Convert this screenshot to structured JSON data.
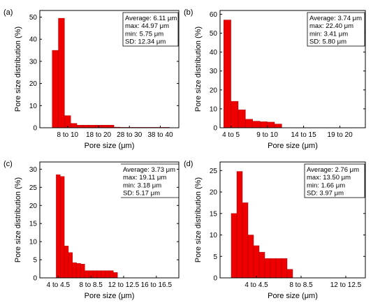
{
  "chart_data": [
    {
      "panel_label": "(a)",
      "type": "bar",
      "xlabel": "Pore size (μm)",
      "ylabel": "Pore size distribution (%)",
      "ylim": [
        0,
        53
      ],
      "yticks": [
        0,
        10,
        20,
        30,
        40,
        50
      ],
      "xlim": [
        0,
        45
      ],
      "xtick_labels": [
        {
          "text": "8 to 10",
          "x": 9
        },
        {
          "text": "18 to 20",
          "x": 19
        },
        {
          "text": "28 to 30",
          "x": 29
        },
        {
          "text": "38 to 40",
          "x": 39
        }
      ],
      "bars": [
        {
          "x0": 4,
          "x1": 6,
          "value": 35
        },
        {
          "x0": 6,
          "x1": 8,
          "value": 49.5
        },
        {
          "x0": 8,
          "x1": 10,
          "value": 5.5
        },
        {
          "x0": 10,
          "x1": 12,
          "value": 2
        },
        {
          "x0": 12,
          "x1": 14,
          "value": 1.2
        },
        {
          "x0": 14,
          "x1": 16,
          "value": 1.2
        },
        {
          "x0": 16,
          "x1": 18,
          "value": 1.2
        },
        {
          "x0": 18,
          "x1": 20,
          "value": 1.2
        },
        {
          "x0": 20,
          "x1": 22,
          "value": 1.2
        },
        {
          "x0": 22,
          "x1": 24,
          "value": 1.2
        },
        {
          "x0": 24,
          "x1": 26,
          "value": 0.3
        },
        {
          "x0": 26,
          "x1": 28,
          "value": 0.2
        },
        {
          "x0": 28,
          "x1": 30,
          "value": 0.2
        },
        {
          "x0": 30,
          "x1": 32,
          "value": 0.2
        },
        {
          "x0": 32,
          "x1": 34,
          "value": 0.2
        },
        {
          "x0": 34,
          "x1": 36,
          "value": 0.2
        },
        {
          "x0": 36,
          "x1": 38,
          "value": 0.2
        },
        {
          "x0": 38,
          "x1": 40,
          "value": 0.2
        },
        {
          "x0": 40,
          "x1": 42,
          "value": 0.2
        }
      ],
      "stats": [
        "Average: 6.11 μm",
        "max: 44.97 μm",
        "min: 5.75 μm",
        "SD: 12.34 μm"
      ],
      "stats_style": "box"
    },
    {
      "panel_label": "(b)",
      "type": "bar",
      "xlabel": "Pore size (μm)",
      "ylabel": "Pore size distribution (%)",
      "ylim": [
        0,
        62
      ],
      "yticks": [
        0,
        10,
        20,
        30,
        40,
        50,
        60
      ],
      "xlim": [
        3,
        23
      ],
      "xtick_labels": [
        {
          "text": "4 to 5",
          "x": 4.5
        },
        {
          "text": "9 to 10",
          "x": 9.5
        },
        {
          "text": "14 to 15",
          "x": 14.5
        },
        {
          "text": "19 to 20",
          "x": 19.5
        }
      ],
      "bars": [
        {
          "x0": 3.5,
          "x1": 4.5,
          "value": 57
        },
        {
          "x0": 4.5,
          "x1": 5.5,
          "value": 14
        },
        {
          "x0": 5.5,
          "x1": 6.5,
          "value": 9.5
        },
        {
          "x0": 6.5,
          "x1": 7.5,
          "value": 4.5
        },
        {
          "x0": 7.5,
          "x1": 8.5,
          "value": 3.5
        },
        {
          "x0": 8.5,
          "x1": 9.5,
          "value": 3.2
        },
        {
          "x0": 9.5,
          "x1": 10.5,
          "value": 3
        },
        {
          "x0": 10.5,
          "x1": 11.5,
          "value": 2
        }
      ],
      "stats": [
        "Average: 3.74 μm",
        "max: 22.40 μm",
        "min: 3.41 μm",
        "SD: 5.80 μm"
      ],
      "stats_style": "box"
    },
    {
      "panel_label": "(c)",
      "type": "bar",
      "xlabel": "Pore size (μm)",
      "ylabel": "Pore size distribution (%)",
      "ylim": [
        0,
        32
      ],
      "yticks": [
        0,
        5,
        10,
        15,
        20,
        25,
        30
      ],
      "xlim": [
        2,
        19
      ],
      "xtick_labels": [
        {
          "text": "4 to 4.5",
          "x": 4.25
        },
        {
          "text": "8 to 8.5",
          "x": 8.25
        },
        {
          "text": "12 to 12.5",
          "x": 12.25
        },
        {
          "text": "16 to 16.5",
          "x": 16.25
        }
      ],
      "bars": [
        {
          "x0": 4.0,
          "x1": 4.5,
          "value": 28.5
        },
        {
          "x0": 4.5,
          "x1": 5.0,
          "value": 28.0
        },
        {
          "x0": 5.0,
          "x1": 5.5,
          "value": 8.8
        },
        {
          "x0": 5.5,
          "x1": 6.0,
          "value": 7.0
        },
        {
          "x0": 6.0,
          "x1": 6.5,
          "value": 4.2
        },
        {
          "x0": 6.5,
          "x1": 7.0,
          "value": 4.0
        },
        {
          "x0": 7.0,
          "x1": 7.5,
          "value": 3.8
        },
        {
          "x0": 7.5,
          "x1": 8.0,
          "value": 2.0
        },
        {
          "x0": 8.0,
          "x1": 8.5,
          "value": 2.0
        },
        {
          "x0": 8.5,
          "x1": 9.0,
          "value": 2.0
        },
        {
          "x0": 9.0,
          "x1": 9.5,
          "value": 2.0
        },
        {
          "x0": 9.5,
          "x1": 10.0,
          "value": 2.0
        },
        {
          "x0": 10.0,
          "x1": 10.5,
          "value": 2.0
        },
        {
          "x0": 10.5,
          "x1": 11.0,
          "value": 2.0
        },
        {
          "x0": 11.0,
          "x1": 11.5,
          "value": 1.5
        }
      ],
      "stats": [
        "Average: 3.73 μm",
        "max: 19.11 μm",
        "min: 3.18 μm",
        "SD: 5.17 μm"
      ],
      "stats_style": "lines"
    },
    {
      "panel_label": "(d)",
      "type": "bar",
      "xlabel": "Pore size (μm)",
      "ylabel": "Pore size distribution (%)",
      "ylim": [
        0,
        27
      ],
      "yticks": [
        0,
        5,
        10,
        15,
        20,
        25
      ],
      "xlim": [
        1,
        14
      ],
      "xtick_labels": [
        {
          "text": "4 to 4.5",
          "x": 4.25
        },
        {
          "text": "8 to 8.5",
          "x": 8.25
        },
        {
          "text": "12 to 12.5",
          "x": 12.25
        }
      ],
      "bars": [
        {
          "x0": 2.0,
          "x1": 2.5,
          "value": 15
        },
        {
          "x0": 2.5,
          "x1": 3.0,
          "value": 24.8
        },
        {
          "x0": 3.0,
          "x1": 3.5,
          "value": 17.5
        },
        {
          "x0": 3.5,
          "x1": 4.0,
          "value": 10
        },
        {
          "x0": 4.0,
          "x1": 4.5,
          "value": 7.5
        },
        {
          "x0": 4.5,
          "x1": 5.0,
          "value": 6.0
        },
        {
          "x0": 5.0,
          "x1": 5.5,
          "value": 4.5
        },
        {
          "x0": 5.5,
          "x1": 6.0,
          "value": 4.5
        },
        {
          "x0": 6.0,
          "x1": 6.5,
          "value": 4.5
        },
        {
          "x0": 6.5,
          "x1": 7.0,
          "value": 4.5
        },
        {
          "x0": 7.0,
          "x1": 7.5,
          "value": 2.0
        }
      ],
      "stats": [
        "Average: 2.76 μm",
        "max: 13.50 μm",
        "min: 1.66 μm",
        "SD: 3.97 μm"
      ],
      "stats_style": "box"
    }
  ],
  "colors": {
    "bar_fill": "#ee0000",
    "bar_stroke": "#990000",
    "axis": "#000000",
    "background": "#ffffff"
  }
}
